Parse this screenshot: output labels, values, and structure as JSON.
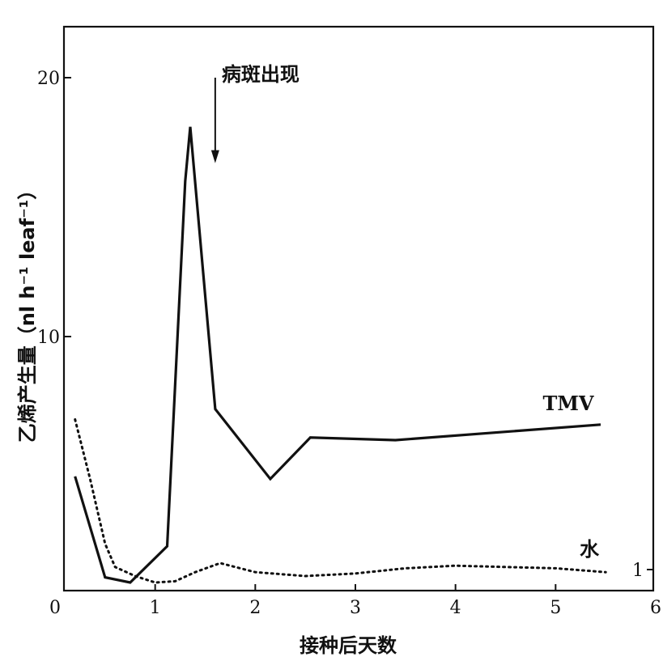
{
  "chart_data": {
    "type": "line",
    "title": "",
    "xlabel": "接种后天数",
    "ylabel": "乙烯产生量（nl h⁻¹ leaf⁻¹）",
    "xlim": [
      0,
      6
    ],
    "ylim": [
      0,
      22
    ],
    "x_ticks": [
      0,
      1,
      2,
      3,
      4,
      5,
      6
    ],
    "y_ticks": [
      10,
      20
    ],
    "grid": false,
    "series": [
      {
        "name": "TMV",
        "style": "solid",
        "color": "#111111",
        "points": [
          [
            0.2,
            4.6
          ],
          [
            0.5,
            0.7
          ],
          [
            0.75,
            0.5
          ],
          [
            1.12,
            1.9
          ],
          [
            1.3,
            16.0
          ],
          [
            1.35,
            18.1
          ],
          [
            1.6,
            7.2
          ],
          [
            2.15,
            4.5
          ],
          [
            2.55,
            6.1
          ],
          [
            3.4,
            6.0
          ],
          [
            5.45,
            6.6
          ]
        ]
      },
      {
        "name": "水",
        "style": "dotted",
        "color": "#111111",
        "points": [
          [
            0.2,
            6.8
          ],
          [
            0.35,
            4.5
          ],
          [
            0.5,
            2.0
          ],
          [
            0.6,
            1.1
          ],
          [
            0.8,
            0.75
          ],
          [
            1.0,
            0.5
          ],
          [
            1.2,
            0.55
          ],
          [
            1.4,
            0.9
          ],
          [
            1.65,
            1.25
          ],
          [
            2.0,
            0.9
          ],
          [
            2.5,
            0.75
          ],
          [
            3.0,
            0.85
          ],
          [
            3.5,
            1.05
          ],
          [
            4.0,
            1.15
          ],
          [
            4.5,
            1.1
          ],
          [
            5.0,
            1.05
          ],
          [
            5.5,
            0.9
          ]
        ]
      }
    ],
    "annotations": [
      {
        "text": "病斑出现",
        "arrow_x": 1.6,
        "arrow_from_y": 20.0,
        "arrow_to_y": 16.7
      }
    ],
    "right_label": {
      "text": "1",
      "y": 1.0
    }
  }
}
